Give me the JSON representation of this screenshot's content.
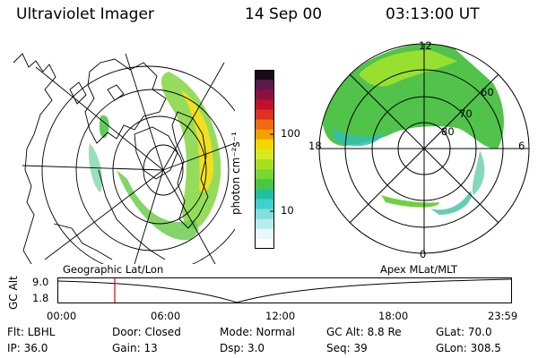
{
  "header": {
    "instrument": "Ultraviolet Imager",
    "date": "14 Sep 00",
    "time": "03:13:00 UT"
  },
  "colorbar": {
    "unit_label": "photon cm⁻²s⁻¹",
    "ticks": [
      "100",
      "10"
    ],
    "colors": [
      "#1a0a1a",
      "#5a1a4a",
      "#8a1040",
      "#c0102a",
      "#e03020",
      "#f06a10",
      "#f5a000",
      "#f2d800",
      "#d8e820",
      "#a8e020",
      "#78d830",
      "#48c840",
      "#20c0a0",
      "#40d0d0",
      "#80e0e0",
      "#b8ecec",
      "#e8f8f8",
      "#ffffff"
    ]
  },
  "left_panel": {
    "caption": "Geographic Lat/Lon"
  },
  "right_panel": {
    "caption": "Apex  MLat/MLT",
    "mlt_labels": {
      "top": "12",
      "bottom": "0",
      "left": "18",
      "right": "6"
    },
    "lat_labels": [
      "60",
      "70",
      "80"
    ]
  },
  "altitude_plot": {
    "ylabel": "GC Alt",
    "yticks": [
      "9.0",
      "1.8"
    ],
    "xticks": [
      "00:00",
      "06:00",
      "12:00",
      "18:00",
      "23:59"
    ],
    "current_time_marker": "03:13",
    "marker_color": "#e00000"
  },
  "footer": {
    "row1": [
      "Flt: LBHL",
      "Door: Closed",
      "Mode: Normal",
      "GC Alt: 8.8 Re",
      "GLat:  70.0"
    ],
    "row2": [
      "IP: 36.0",
      "Gain: 13",
      "Dsp:     3.0",
      "Seq: 39",
      "GLon: 308.5"
    ]
  }
}
